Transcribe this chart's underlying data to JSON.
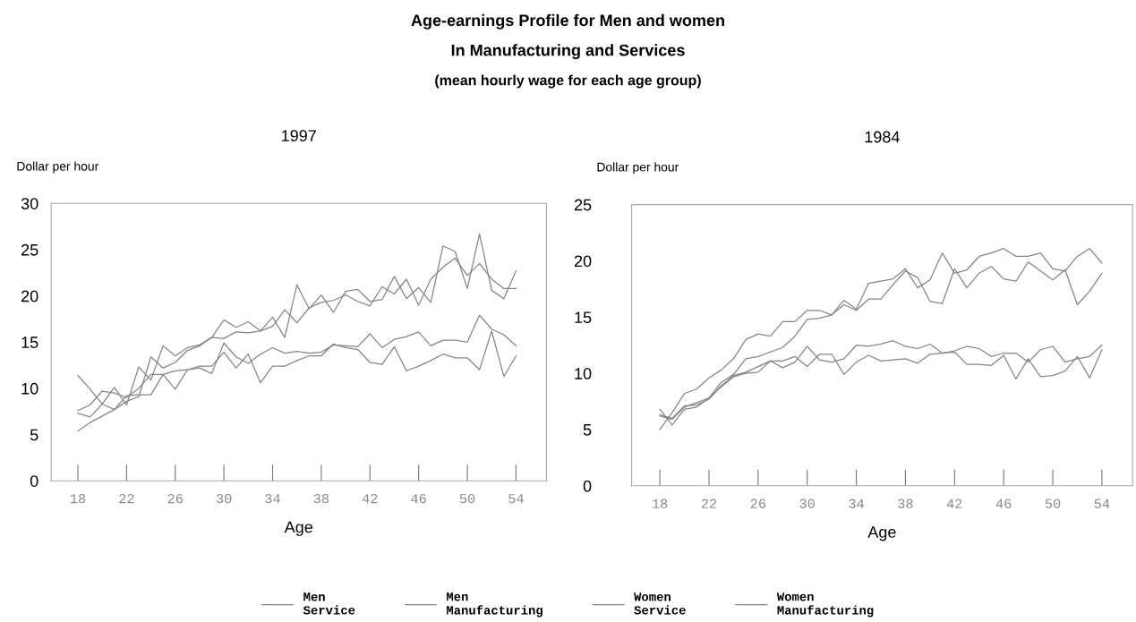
{
  "chart_data": [
    {
      "type": "line",
      "title": "1997",
      "ylabel": "Dollar per hour",
      "xlabel": "Age",
      "legend": "bottom",
      "grid": false,
      "annotations": [
        "Age-earnings Profile for Men and women",
        "In Manufacturing and Services",
        "(mean hourly wage for each age group)"
      ],
      "x": [
        18,
        19,
        20,
        21,
        22,
        23,
        24,
        25,
        26,
        27,
        28,
        29,
        30,
        31,
        32,
        33,
        34,
        35,
        36,
        37,
        38,
        39,
        40,
        41,
        42,
        43,
        44,
        45,
        46,
        47,
        48,
        49,
        50,
        51,
        52,
        53,
        54
      ],
      "xlim": [
        15.8,
        56.5
      ],
      "xticks": [
        18,
        22,
        26,
        30,
        34,
        38,
        42,
        46,
        50,
        54
      ],
      "ylim": [
        0,
        30
      ],
      "yticks": [
        0,
        5,
        10,
        15,
        20,
        25,
        30
      ],
      "series": [
        {
          "name": "Men\nService",
          "color": "#858585",
          "values": [
            7.3,
            6.9,
            8.3,
            10.1,
            8.2,
            12.3,
            10.9,
            14.6,
            13.5,
            14.4,
            14.7,
            15.5,
            17.4,
            16.6,
            17.2,
            16.2,
            17.7,
            15.5,
            21.2,
            18.6,
            20.1,
            18.2,
            20.5,
            20.7,
            19.4,
            19.6,
            22.1,
            19.7,
            20.9,
            19.3,
            25.4,
            24.8,
            20.8,
            26.7,
            20.6,
            19.7,
            22.7
          ]
        },
        {
          "name": "Men\nManufacturing",
          "color": "#858585",
          "values": [
            5.4,
            6.3,
            7.0,
            7.7,
            8.6,
            9.1,
            13.4,
            12.2,
            12.8,
            14.1,
            14.6,
            15.5,
            15.4,
            16.1,
            16.0,
            16.2,
            16.7,
            18.5,
            17.1,
            18.7,
            19.3,
            19.5,
            20.1,
            19.4,
            18.9,
            21.0,
            20.2,
            21.8,
            19.0,
            21.8,
            23.1,
            24.1,
            22.2,
            23.5,
            21.8,
            20.8,
            20.8
          ]
        },
        {
          "name": "Women\nService",
          "color": "#858585",
          "values": [
            11.4,
            9.9,
            8.3,
            7.7,
            9.2,
            9.3,
            9.3,
            11.5,
            9.9,
            12.0,
            12.2,
            11.6,
            14.9,
            13.4,
            12.7,
            13.7,
            14.4,
            13.8,
            14.0,
            13.8,
            13.9,
            14.7,
            14.6,
            14.5,
            15.9,
            14.4,
            15.3,
            15.6,
            16.1,
            14.6,
            15.2,
            15.2,
            15.0,
            17.9,
            16.4,
            15.8,
            14.6
          ]
        },
        {
          "name": "Women\nManufacturing",
          "color": "#858585",
          "values": [
            7.6,
            8.2,
            9.7,
            9.5,
            9.0,
            10.0,
            11.5,
            11.5,
            11.9,
            12.0,
            12.4,
            12.4,
            13.9,
            12.2,
            13.7,
            10.6,
            12.4,
            12.4,
            13.0,
            13.5,
            13.5,
            14.8,
            14.4,
            14.2,
            12.8,
            12.6,
            14.5,
            11.9,
            12.4,
            13.0,
            13.7,
            13.3,
            13.3,
            12.0,
            16.2,
            11.3,
            13.5
          ]
        }
      ]
    },
    {
      "type": "line",
      "title": "1984",
      "ylabel": "Dollar per hour",
      "xlabel": "Age",
      "grid": false,
      "x": [
        18,
        19,
        20,
        21,
        22,
        23,
        24,
        25,
        26,
        27,
        28,
        29,
        30,
        31,
        32,
        33,
        34,
        35,
        36,
        37,
        38,
        39,
        40,
        41,
        42,
        43,
        44,
        45,
        46,
        47,
        48,
        49,
        50,
        51,
        52,
        53,
        54
      ],
      "xlim": [
        15.7,
        56.5
      ],
      "xticks": [
        18,
        22,
        26,
        30,
        34,
        38,
        42,
        46,
        50,
        54
      ],
      "ylim": [
        0,
        25
      ],
      "yticks": [
        0,
        5,
        10,
        15,
        20,
        25
      ],
      "series": [
        {
          "color": "#858585",
          "values": [
            5.0,
            6.5,
            8.2,
            8.6,
            9.6,
            10.3,
            11.3,
            13.0,
            13.5,
            13.3,
            14.6,
            14.6,
            15.6,
            15.6,
            15.2,
            16.5,
            15.7,
            18.0,
            18.2,
            18.4,
            19.3,
            17.6,
            18.3,
            20.7,
            18.9,
            19.2,
            20.4,
            20.7,
            21.1,
            20.4,
            20.4,
            20.7,
            19.3,
            19.1,
            20.4,
            21.1,
            19.8
          ]
        },
        {
          "color": "#858585",
          "values": [
            6.2,
            5.9,
            7.0,
            7.4,
            7.8,
            9.2,
            9.9,
            11.3,
            11.5,
            11.9,
            12.3,
            13.3,
            14.8,
            14.9,
            15.2,
            16.1,
            15.6,
            16.6,
            16.6,
            17.9,
            19.1,
            18.5,
            16.4,
            16.2,
            19.3,
            17.6,
            18.9,
            19.5,
            18.4,
            18.2,
            19.9,
            19.1,
            18.3,
            19.2,
            16.1,
            17.3,
            18.9
          ]
        },
        {
          "color": "#858585",
          "values": [
            6.8,
            5.4,
            6.8,
            7.0,
            7.8,
            8.8,
            9.7,
            10.0,
            10.1,
            11.1,
            10.5,
            11.0,
            12.4,
            11.2,
            11.0,
            11.3,
            12.5,
            12.4,
            12.6,
            12.9,
            12.4,
            12.2,
            12.6,
            11.8,
            12.0,
            12.4,
            12.2,
            11.5,
            11.8,
            11.8,
            11.0,
            12.1,
            12.4,
            11.0,
            11.3,
            11.5,
            12.5
          ]
        },
        {
          "color": "#858585",
          "values": [
            6.3,
            6.0,
            7.1,
            7.2,
            7.7,
            8.9,
            9.8,
            10.1,
            10.6,
            11.1,
            11.1,
            11.5,
            10.6,
            11.7,
            11.7,
            9.9,
            11.0,
            11.6,
            11.1,
            11.2,
            11.3,
            10.9,
            11.7,
            11.8,
            11.9,
            10.8,
            10.8,
            10.7,
            11.6,
            9.5,
            11.3,
            9.7,
            9.8,
            10.2,
            11.5,
            9.6,
            12.1
          ]
        }
      ]
    }
  ]
}
